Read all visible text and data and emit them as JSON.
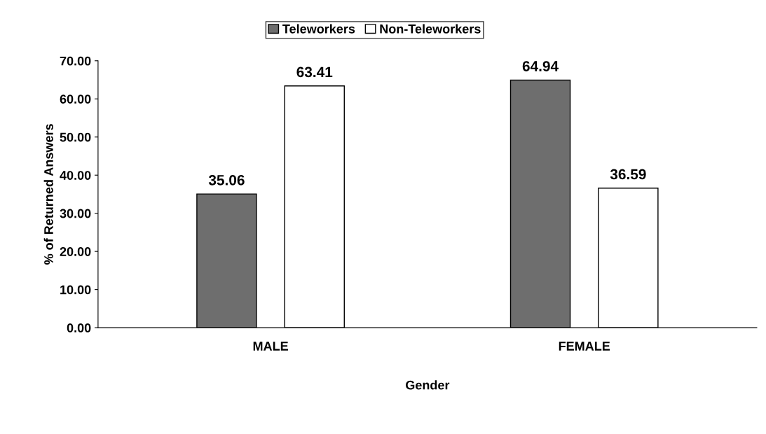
{
  "chart_data": {
    "type": "bar",
    "xlabel": "Gender",
    "ylabel": "% of Returned Answers",
    "categories": [
      "MALE",
      "FEMALE"
    ],
    "series": [
      {
        "name": "Teleworkers",
        "color": "#6e6e6e",
        "values": [
          35.06,
          64.94
        ]
      },
      {
        "name": "Non-Teleworkers",
        "color": "#ffffff",
        "values": [
          63.41,
          36.59
        ]
      }
    ],
    "ylim": [
      0,
      70
    ],
    "yticks": [
      {
        "value": 0,
        "label": "0.00"
      },
      {
        "value": 10,
        "label": "10.00"
      },
      {
        "value": 20,
        "label": "20.00"
      },
      {
        "value": 30,
        "label": "30.00"
      },
      {
        "value": 40,
        "label": "40.00"
      },
      {
        "value": 50,
        "label": "50.00"
      },
      {
        "value": 60,
        "label": "60.00"
      },
      {
        "value": 70,
        "label": "70.00"
      }
    ],
    "data_labels": true,
    "legend": "top",
    "grid": false
  }
}
